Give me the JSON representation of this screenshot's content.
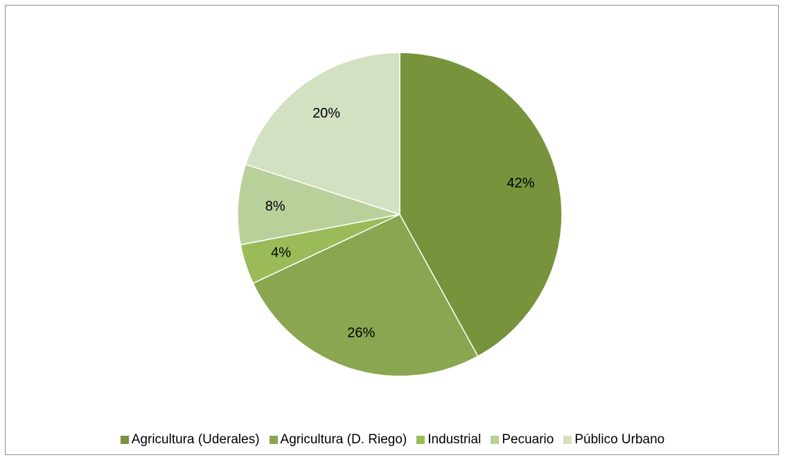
{
  "chart_data": {
    "type": "pie",
    "title": "",
    "categories": [
      "Agricultura (Uderales)",
      "Agricultura (D. Riego)",
      "Industrial",
      "Pecuario",
      "Público Urbano"
    ],
    "values": [
      42,
      26,
      4,
      8,
      20
    ],
    "labels": [
      "42%",
      "26%",
      "4%",
      "8%",
      "20%"
    ],
    "colors": [
      "#77933c",
      "#8aa651",
      "#9bbb59",
      "#bad09a",
      "#d3e0c1"
    ],
    "legend": {
      "placement": "bottom",
      "entries": [
        "Agricultura (Uderales)",
        "Agricultura (D. Riego)",
        "Industrial",
        "Pecuario",
        "Público Urbano"
      ]
    }
  }
}
